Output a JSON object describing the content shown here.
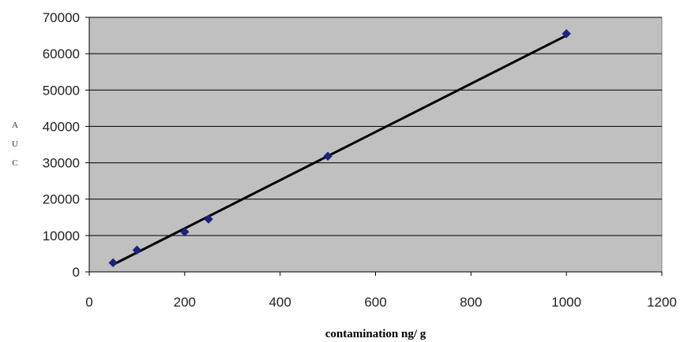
{
  "chart_data": {
    "type": "scatter",
    "title": "",
    "xlabel": "contamination ng/ g",
    "ylabel": "AUC",
    "xlim": [
      0,
      1200
    ],
    "ylim": [
      0,
      70000
    ],
    "x_ticks": [
      "0",
      "200",
      "400",
      "600",
      "800",
      "1000",
      "1200"
    ],
    "y_ticks": [
      "0",
      "10000",
      "20000",
      "30000",
      "40000",
      "50000",
      "60000",
      "70000"
    ],
    "grid": "horizontal",
    "legend": "none",
    "series": [
      {
        "points": [
          {
            "x": 50,
            "y": 2500
          },
          {
            "x": 100,
            "y": 6000
          },
          {
            "x": 200,
            "y": 11000
          },
          {
            "x": 250,
            "y": 14500
          },
          {
            "x": 500,
            "y": 31800
          },
          {
            "x": 1000,
            "y": 65500
          }
        ],
        "color": "#1a237e",
        "marker": "diamond"
      }
    ],
    "trendline": {
      "type": "linear",
      "from": {
        "x": 50,
        "y": 2000
      },
      "to": {
        "x": 1000,
        "y": 65000
      },
      "color": "#000000"
    },
    "plot_background": "#c0c0c0",
    "gridline_color": "#000000"
  }
}
